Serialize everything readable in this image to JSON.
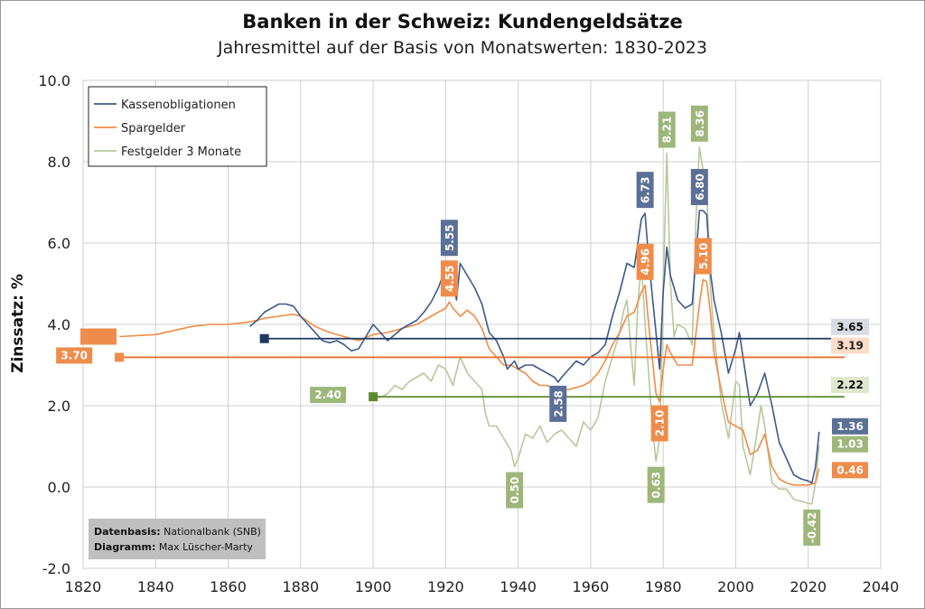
{
  "chart_data": {
    "type": "line",
    "title": "Banken in der Schweiz: Kundengeldsätze",
    "subtitle": "Jahresmittel auf der Basis von Monatswerten: 1830-2023",
    "ylabel": "Zinssatz: %",
    "xlabel": "",
    "xlim": [
      1820,
      2040
    ],
    "ylim": [
      -2,
      10
    ],
    "x_ticks": [
      "1820",
      "1840",
      "1860",
      "1880",
      "1900",
      "1920",
      "1940",
      "1960",
      "1980",
      "2000",
      "2020",
      "2040"
    ],
    "y_ticks": [
      "-2.0",
      "0.0",
      "2.0",
      "4.0",
      "6.0",
      "8.0",
      "10.0"
    ],
    "grid": true,
    "legend_position": "top-left",
    "series": [
      {
        "name": "Kassenobligationen",
        "color": "#3d5a8a",
        "points": [
          [
            1866,
            3.95
          ],
          [
            1868,
            4.1
          ],
          [
            1870,
            4.3
          ],
          [
            1872,
            4.4
          ],
          [
            1874,
            4.5
          ],
          [
            1876,
            4.5
          ],
          [
            1878,
            4.45
          ],
          [
            1880,
            4.2
          ],
          [
            1882,
            4.0
          ],
          [
            1884,
            3.8
          ],
          [
            1886,
            3.6
          ],
          [
            1888,
            3.55
          ],
          [
            1890,
            3.6
          ],
          [
            1892,
            3.5
          ],
          [
            1894,
            3.35
          ],
          [
            1896,
            3.4
          ],
          [
            1898,
            3.7
          ],
          [
            1900,
            4.0
          ],
          [
            1902,
            3.8
          ],
          [
            1904,
            3.6
          ],
          [
            1906,
            3.75
          ],
          [
            1908,
            3.9
          ],
          [
            1910,
            4.0
          ],
          [
            1912,
            4.1
          ],
          [
            1914,
            4.3
          ],
          [
            1916,
            4.55
          ],
          [
            1918,
            4.9
          ],
          [
            1920,
            5.4
          ],
          [
            1921,
            5.55
          ],
          [
            1922,
            5.0
          ],
          [
            1923,
            4.6
          ],
          [
            1924,
            5.5
          ],
          [
            1926,
            5.2
          ],
          [
            1928,
            4.9
          ],
          [
            1930,
            4.5
          ],
          [
            1932,
            3.8
          ],
          [
            1934,
            3.6
          ],
          [
            1936,
            3.2
          ],
          [
            1937,
            2.9
          ],
          [
            1939,
            3.1
          ],
          [
            1940,
            2.9
          ],
          [
            1942,
            3.0
          ],
          [
            1944,
            3.0
          ],
          [
            1946,
            2.9
          ],
          [
            1948,
            2.8
          ],
          [
            1950,
            2.7
          ],
          [
            1951,
            2.58
          ],
          [
            1952,
            2.7
          ],
          [
            1954,
            2.9
          ],
          [
            1956,
            3.1
          ],
          [
            1958,
            3.0
          ],
          [
            1960,
            3.2
          ],
          [
            1962,
            3.3
          ],
          [
            1964,
            3.5
          ],
          [
            1966,
            4.2
          ],
          [
            1968,
            4.8
          ],
          [
            1970,
            5.5
          ],
          [
            1972,
            5.4
          ],
          [
            1974,
            6.6
          ],
          [
            1975,
            6.73
          ],
          [
            1976,
            5.6
          ],
          [
            1978,
            3.8
          ],
          [
            1979,
            2.9
          ],
          [
            1980,
            4.8
          ],
          [
            1981,
            5.9
          ],
          [
            1982,
            5.2
          ],
          [
            1984,
            4.6
          ],
          [
            1986,
            4.4
          ],
          [
            1988,
            4.5
          ],
          [
            1989,
            5.6
          ],
          [
            1990,
            6.8
          ],
          [
            1991,
            6.8
          ],
          [
            1992,
            6.7
          ],
          [
            1993,
            5.3
          ],
          [
            1994,
            4.6
          ],
          [
            1996,
            3.8
          ],
          [
            1998,
            2.8
          ],
          [
            2000,
            3.4
          ],
          [
            2001,
            3.8
          ],
          [
            2002,
            3.2
          ],
          [
            2004,
            2.0
          ],
          [
            2006,
            2.3
          ],
          [
            2008,
            2.8
          ],
          [
            2010,
            2.0
          ],
          [
            2012,
            1.1
          ],
          [
            2014,
            0.7
          ],
          [
            2016,
            0.3
          ],
          [
            2018,
            0.2
          ],
          [
            2020,
            0.15
          ],
          [
            2021,
            0.1
          ],
          [
            2022,
            0.5
          ],
          [
            2023,
            1.36
          ]
        ]
      },
      {
        "name": "Spargelder",
        "color": "#f08c46",
        "points": [
          [
            1830,
            3.7
          ],
          [
            1840,
            3.75
          ],
          [
            1845,
            3.85
          ],
          [
            1850,
            3.95
          ],
          [
            1855,
            4.0
          ],
          [
            1860,
            4.0
          ],
          [
            1865,
            4.05
          ],
          [
            1868,
            4.1
          ],
          [
            1870,
            4.15
          ],
          [
            1874,
            4.2
          ],
          [
            1878,
            4.25
          ],
          [
            1880,
            4.2
          ],
          [
            1884,
            3.95
          ],
          [
            1888,
            3.8
          ],
          [
            1892,
            3.7
          ],
          [
            1896,
            3.6
          ],
          [
            1900,
            3.75
          ],
          [
            1904,
            3.8
          ],
          [
            1908,
            3.9
          ],
          [
            1912,
            4.0
          ],
          [
            1916,
            4.2
          ],
          [
            1918,
            4.3
          ],
          [
            1920,
            4.4
          ],
          [
            1921,
            4.55
          ],
          [
            1922,
            4.4
          ],
          [
            1924,
            4.2
          ],
          [
            1926,
            4.35
          ],
          [
            1928,
            4.2
          ],
          [
            1930,
            3.9
          ],
          [
            1932,
            3.4
          ],
          [
            1934,
            3.2
          ],
          [
            1936,
            3.0
          ],
          [
            1938,
            3.0
          ],
          [
            1940,
            2.9
          ],
          [
            1942,
            2.8
          ],
          [
            1944,
            2.6
          ],
          [
            1946,
            2.5
          ],
          [
            1948,
            2.5
          ],
          [
            1950,
            2.4
          ],
          [
            1952,
            2.4
          ],
          [
            1954,
            2.4
          ],
          [
            1956,
            2.45
          ],
          [
            1958,
            2.5
          ],
          [
            1960,
            2.6
          ],
          [
            1962,
            2.8
          ],
          [
            1964,
            3.1
          ],
          [
            1966,
            3.5
          ],
          [
            1968,
            3.8
          ],
          [
            1970,
            4.2
          ],
          [
            1972,
            4.3
          ],
          [
            1974,
            4.8
          ],
          [
            1975,
            4.96
          ],
          [
            1976,
            4.0
          ],
          [
            1978,
            2.3
          ],
          [
            1979,
            2.1
          ],
          [
            1980,
            2.9
          ],
          [
            1981,
            3.5
          ],
          [
            1982,
            3.3
          ],
          [
            1984,
            3.0
          ],
          [
            1986,
            3.0
          ],
          [
            1988,
            3.0
          ],
          [
            1990,
            4.5
          ],
          [
            1991,
            5.1
          ],
          [
            1992,
            5.05
          ],
          [
            1993,
            4.3
          ],
          [
            1994,
            3.3
          ],
          [
            1996,
            2.4
          ],
          [
            1998,
            1.6
          ],
          [
            2000,
            1.5
          ],
          [
            2002,
            1.4
          ],
          [
            2004,
            0.8
          ],
          [
            2006,
            0.9
          ],
          [
            2008,
            1.3
          ],
          [
            2010,
            0.5
          ],
          [
            2012,
            0.2
          ],
          [
            2014,
            0.1
          ],
          [
            2016,
            0.05
          ],
          [
            2018,
            0.05
          ],
          [
            2020,
            0.05
          ],
          [
            2022,
            0.1
          ],
          [
            2023,
            0.46
          ]
        ]
      },
      {
        "name": "Festgelder 3 Monate",
        "color": "#b5c99a",
        "points": [
          [
            1900,
            2.3
          ],
          [
            1902,
            2.2
          ],
          [
            1904,
            2.3
          ],
          [
            1906,
            2.5
          ],
          [
            1908,
            2.4
          ],
          [
            1910,
            2.6
          ],
          [
            1912,
            2.7
          ],
          [
            1914,
            2.8
          ],
          [
            1916,
            2.6
          ],
          [
            1918,
            3.0
          ],
          [
            1920,
            2.9
          ],
          [
            1922,
            2.5
          ],
          [
            1924,
            3.2
          ],
          [
            1926,
            2.8
          ],
          [
            1928,
            2.6
          ],
          [
            1930,
            2.4
          ],
          [
            1931,
            1.8
          ],
          [
            1932,
            1.5
          ],
          [
            1934,
            1.5
          ],
          [
            1936,
            1.2
          ],
          [
            1938,
            0.9
          ],
          [
            1939,
            0.5
          ],
          [
            1940,
            0.7
          ],
          [
            1942,
            1.3
          ],
          [
            1944,
            1.2
          ],
          [
            1946,
            1.5
          ],
          [
            1948,
            1.1
          ],
          [
            1950,
            1.3
          ],
          [
            1952,
            1.4
          ],
          [
            1954,
            1.2
          ],
          [
            1956,
            1.0
          ],
          [
            1958,
            1.6
          ],
          [
            1960,
            1.4
          ],
          [
            1962,
            1.7
          ],
          [
            1964,
            2.6
          ],
          [
            1966,
            3.2
          ],
          [
            1968,
            3.8
          ],
          [
            1969,
            4.3
          ],
          [
            1970,
            4.6
          ],
          [
            1971,
            3.5
          ],
          [
            1972,
            2.5
          ],
          [
            1973,
            4.5
          ],
          [
            1974,
            5.5
          ],
          [
            1975,
            4.0
          ],
          [
            1976,
            2.8
          ],
          [
            1977,
            1.5
          ],
          [
            1978,
            0.63
          ],
          [
            1979,
            1.2
          ],
          [
            1980,
            5.0
          ],
          [
            1981,
            8.21
          ],
          [
            1982,
            5.0
          ],
          [
            1983,
            3.7
          ],
          [
            1984,
            4.0
          ],
          [
            1986,
            3.9
          ],
          [
            1988,
            3.5
          ],
          [
            1989,
            6.5
          ],
          [
            1990,
            8.36
          ],
          [
            1991,
            7.8
          ],
          [
            1992,
            7.4
          ],
          [
            1993,
            4.9
          ],
          [
            1994,
            3.8
          ],
          [
            1996,
            2.1
          ],
          [
            1998,
            1.2
          ],
          [
            2000,
            2.6
          ],
          [
            2001,
            2.5
          ],
          [
            2002,
            1.0
          ],
          [
            2004,
            0.3
          ],
          [
            2006,
            1.4
          ],
          [
            2007,
            2.0
          ],
          [
            2008,
            1.5
          ],
          [
            2010,
            0.1
          ],
          [
            2012,
            -0.05
          ],
          [
            2014,
            -0.05
          ],
          [
            2016,
            -0.3
          ],
          [
            2018,
            -0.35
          ],
          [
            2020,
            -0.4
          ],
          [
            2021,
            -0.42
          ],
          [
            2022,
            0.1
          ],
          [
            2023,
            1.03
          ]
        ]
      }
    ],
    "averages": [
      {
        "series": "Kassenobligationen",
        "start": 1870,
        "end": 2030,
        "value": 3.65,
        "label": "3.65"
      },
      {
        "series": "Spargelder",
        "start": 1830,
        "end": 2030,
        "value": 3.19,
        "label": "3.19",
        "start_label": "3.70"
      },
      {
        "series": "Festgelder 3 Monate",
        "start": 1900,
        "end": 2030,
        "value": 2.22,
        "label": "2.22",
        "start_label": "2.40"
      }
    ],
    "annotations": [
      {
        "text": "5.55",
        "series": "Kassenobligationen",
        "year": 1921,
        "vertical": true
      },
      {
        "text": "4.55",
        "series": "Spargelder",
        "year": 1921,
        "vertical": true
      },
      {
        "text": "0.50",
        "series": "Festgelder 3 Monate",
        "year": 1939,
        "vertical": true
      },
      {
        "text": "2.58",
        "series": "Kassenobligationen",
        "year": 1951,
        "vertical": true
      },
      {
        "text": "6.73",
        "series": "Kassenobligationen",
        "year": 1975,
        "vertical": true
      },
      {
        "text": "4.96",
        "series": "Spargelder",
        "year": 1975,
        "vertical": true
      },
      {
        "text": "2.10",
        "series": "Spargelder",
        "year": 1979,
        "vertical": true
      },
      {
        "text": "0.63",
        "series": "Festgelder 3 Monate",
        "year": 1978,
        "vertical": true
      },
      {
        "text": "8.21",
        "series": "Festgelder 3 Monate",
        "year": 1981,
        "vertical": true
      },
      {
        "text": "8.36",
        "series": "Festgelder 3 Monate",
        "year": 1990,
        "vertical": true
      },
      {
        "text": "6.80",
        "series": "Kassenobligationen",
        "year": 1990,
        "vertical": true
      },
      {
        "text": "5.10",
        "series": "Spargelder",
        "year": 1991,
        "vertical": true
      },
      {
        "text": "-0.42",
        "series": "Festgelder 3 Monate",
        "year": 2021,
        "vertical": true
      },
      {
        "text": "1.36",
        "series": "Kassenobligationen",
        "year": 2023,
        "vertical": false
      },
      {
        "text": "1.03",
        "series": "Festgelder 3 Monate",
        "year": 2023,
        "vertical": false
      },
      {
        "text": "0.46",
        "series": "Spargelder",
        "year": 2023,
        "vertical": false
      }
    ],
    "source": {
      "line1_label": "Datenbasis:",
      "line1_value": "Nationalbank (SNB)",
      "line2_label": "Diagramm:",
      "line2_value": "Max Lüscher-Marty"
    }
  },
  "colors": {
    "kassen_dark": "#1f3864",
    "kassen_label": "#5b7096",
    "spar_dark": "#e8702a",
    "spar_label": "#ef8c4b",
    "fest_dark": "#5e8a2e",
    "fest_label": "#9db67a",
    "avg_label_bg": "#d6dbe4",
    "spar_avg_bg": "#fbdcc8",
    "fest_avg_bg": "#dfe7cf"
  }
}
